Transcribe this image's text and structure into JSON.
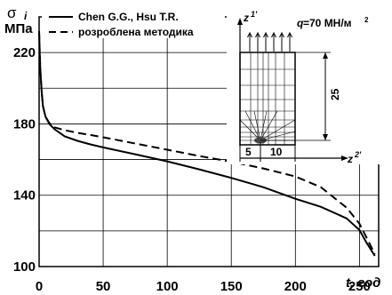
{
  "chart_data": {
    "type": "line",
    "xlabel": "t, год",
    "ylabel_symbol": "σ",
    "ylabel_subscript": "i",
    "ylabel_unit": "МПа",
    "xlim": [
      0,
      265
    ],
    "ylim": [
      100,
      240
    ],
    "x_ticks": [
      0,
      50,
      100,
      150,
      200,
      250
    ],
    "x_tick_labels": [
      "0",
      "50",
      "100",
      "150",
      "200",
      "250"
    ],
    "y_ticks": [
      100,
      140,
      180,
      220
    ],
    "y_tick_labels": [
      "100",
      "140",
      "180",
      "220"
    ],
    "grid": true,
    "legend_position": "top-left",
    "series": [
      {
        "name": "Chen G.G., Hsu T.R.",
        "style": "solid",
        "x": [
          0,
          0.5,
          1,
          2,
          3,
          5,
          8,
          12,
          20,
          30,
          40,
          50,
          75,
          100,
          125,
          150,
          175,
          200,
          220,
          240,
          250,
          255,
          262
        ],
        "y": [
          232,
          220,
          210,
          198,
          190,
          184,
          180,
          177,
          173,
          170.5,
          168.5,
          166.8,
          163,
          159,
          154.5,
          149.7,
          144.5,
          138,
          133.5,
          127,
          120.5,
          114,
          106
        ]
      },
      {
        "name": "розроблена методика",
        "style": "dashed",
        "x": [
          0,
          0.5,
          1,
          2,
          3,
          5,
          8,
          12,
          20,
          30,
          40,
          50,
          75,
          100,
          125,
          150,
          175,
          200,
          220,
          240,
          250,
          255,
          262
        ],
        "y": [
          232,
          220,
          210,
          198,
          190,
          184,
          180.5,
          178,
          176.5,
          175,
          173.8,
          172.5,
          169,
          165.5,
          162,
          158.8,
          155,
          150.5,
          144.5,
          133,
          124,
          117,
          107
        ]
      }
    ]
  },
  "inset": {
    "z1_label": "z",
    "z1_prime": "1'",
    "z2_label": "z",
    "z2_prime": "2'",
    "q_label": "q",
    "q_value": "=70 МН/м",
    "q_sup": "2",
    "dim_height": "25",
    "dim_w1": "5",
    "dim_w2": "10"
  }
}
